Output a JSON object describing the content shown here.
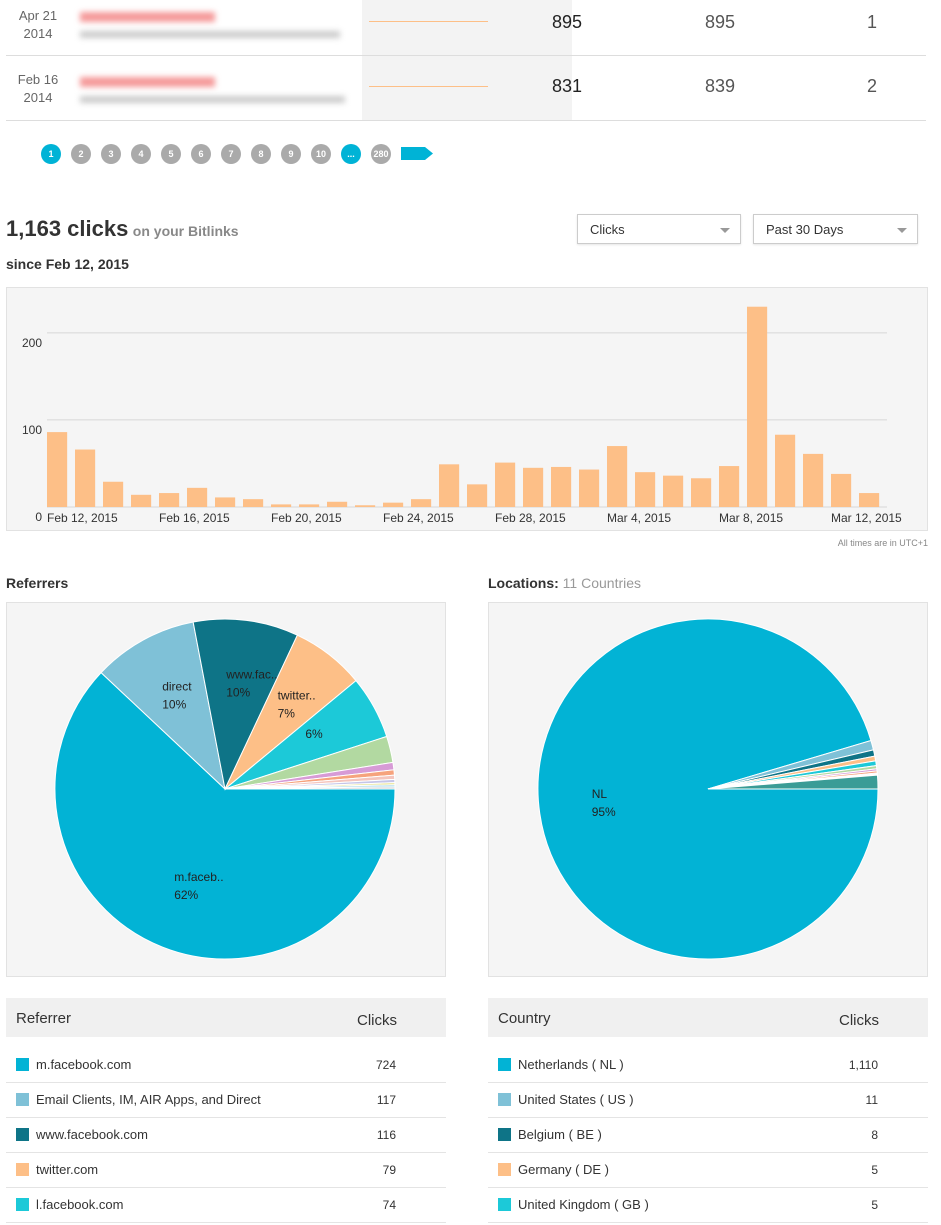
{
  "link_rows": [
    {
      "date": "Apr 21",
      "year": "2014",
      "values": [
        895,
        895,
        1
      ]
    },
    {
      "date": "Feb 16",
      "year": "2014",
      "values": [
        831,
        839,
        2
      ]
    }
  ],
  "pagination": [
    "1",
    "2",
    "3",
    "4",
    "5",
    "6",
    "7",
    "8",
    "9",
    "10",
    "...",
    "280"
  ],
  "summary": {
    "total": "1,163 clicks",
    "suffix": "on your Bitlinks",
    "since": "since Feb 12, 2015"
  },
  "controls": {
    "metric": "Clicks",
    "range": "Past 30 Days"
  },
  "timezone_note": "All times are in UTC+1",
  "referrers": {
    "heading": "Referrers",
    "table": {
      "header": [
        "Referrer",
        "Clicks"
      ],
      "rows": [
        [
          "m.facebook.com",
          "724"
        ],
        [
          "Email Clients, IM, AIR Apps, and Direct",
          "117"
        ],
        [
          "www.facebook.com",
          "116"
        ],
        [
          "twitter.com",
          "79"
        ],
        [
          "l.facebook.com",
          "74"
        ]
      ]
    }
  },
  "locations": {
    "heading": "Locations:",
    "count": "11 Countries",
    "table": {
      "header": [
        "Country",
        "Clicks"
      ],
      "rows": [
        [
          "Netherlands ( NL )",
          "1,110"
        ],
        [
          "United States ( US )",
          "11"
        ],
        [
          "Belgium ( BE )",
          "8"
        ],
        [
          "Germany ( DE )",
          "5"
        ],
        [
          "United Kingdom ( GB )",
          "5"
        ]
      ]
    }
  },
  "chart_data": [
    {
      "type": "bar",
      "color": "#fdbf87",
      "grid": true,
      "categories": [
        "Feb 12, 2015",
        null,
        null,
        null,
        "Feb 16, 2015",
        null,
        null,
        null,
        "Feb 20, 2015",
        null,
        null,
        null,
        "Feb 24, 2015",
        null,
        null,
        null,
        "Feb 28, 2015",
        null,
        null,
        null,
        "Mar 4, 2015",
        null,
        null,
        null,
        "Mar 8, 2015",
        null,
        null,
        null,
        "Mar 12, 2015",
        null
      ],
      "values": [
        86,
        66,
        29,
        14,
        16,
        22,
        11,
        9,
        3,
        3,
        6,
        2,
        5,
        9,
        49,
        26,
        51,
        45,
        46,
        43,
        70,
        40,
        36,
        33,
        47,
        230,
        83,
        61,
        38,
        16
      ],
      "ylim": [
        0,
        240
      ],
      "yticks": [
        0,
        100,
        200
      ]
    },
    {
      "type": "pie",
      "labels": [
        "m.faceb..",
        "direct",
        "www.fac..",
        "twitter..",
        null,
        null,
        null,
        null,
        null,
        null,
        null,
        null,
        null
      ],
      "values": [
        62,
        10,
        10,
        7,
        6,
        2.5,
        0.7,
        0.5,
        0.4,
        0.3,
        0.2,
        0.2,
        0.2
      ],
      "value_labels": [
        "62%",
        "10%",
        "10%",
        "7%",
        "6%",
        null,
        null,
        null,
        null,
        null,
        null,
        null,
        null
      ],
      "colors": [
        "#02b3d5",
        "#7fc1d7",
        "#0e7487",
        "#fdbf87",
        "#1cc9d8",
        "#b2d9a1",
        "#d79bd6",
        "#f6a37d",
        "#f4c5bd",
        "#c5c5e8",
        "#e8e28a",
        "#a8d8e8",
        "#d0d0d0"
      ]
    },
    {
      "type": "pie",
      "labels": [
        "NL",
        null,
        null,
        null,
        null,
        null,
        null,
        null,
        null,
        null,
        null
      ],
      "values": [
        95.4,
        0.9,
        0.6,
        0.45,
        0.45,
        0.3,
        0.2,
        0.2,
        0.1,
        0.1,
        1.3
      ],
      "value_labels": [
        "95%",
        null,
        null,
        null,
        null,
        null,
        null,
        null,
        null,
        null,
        null
      ],
      "colors": [
        "#02b3d5",
        "#7fc1d7",
        "#0e7487",
        "#fdbf87",
        "#1cc9d8",
        "#b2d9a1",
        "#d79bd6",
        "#f6a37d",
        "#c5c5e8",
        "#e8e28a",
        "#3a9c96"
      ]
    }
  ]
}
